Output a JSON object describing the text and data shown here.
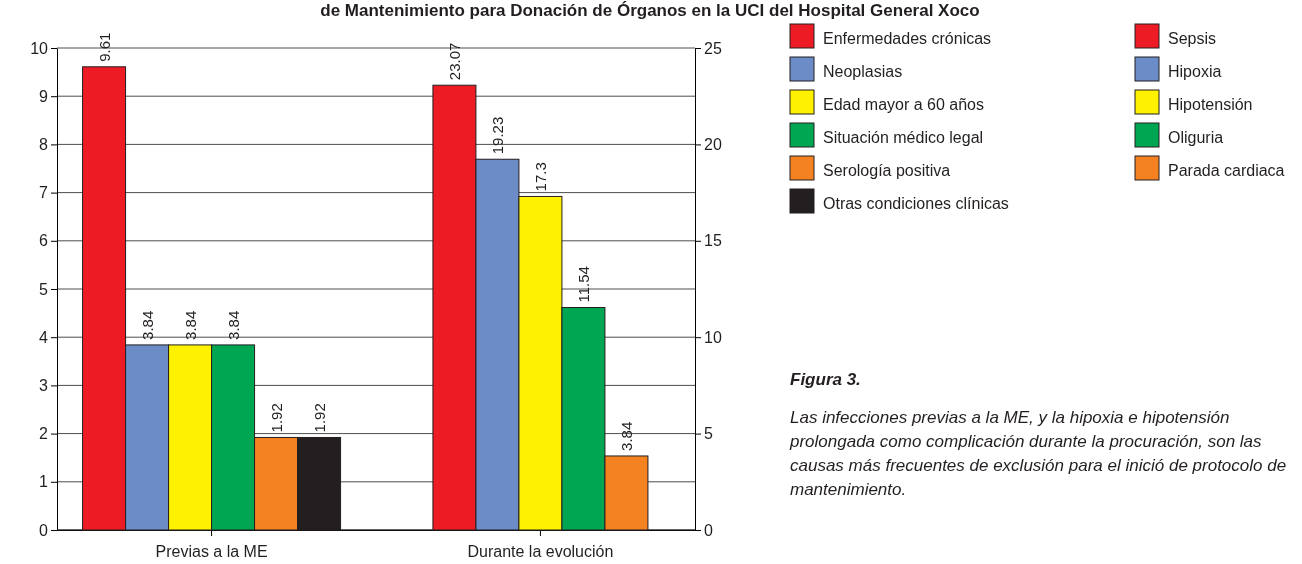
{
  "chart_data": {
    "type": "bar",
    "title": "de Mantenimiento para Donación de Órganos en la UCI del Hospital General Xoco",
    "categories": [
      "Previas a la ME",
      "Durante la evolución"
    ],
    "series": [
      {
        "name": "Enfermedades crónicas",
        "color": "#ed1c24",
        "values": [
          9.61,
          null
        ]
      },
      {
        "name": "Neoplasias",
        "color": "#6b8cc7",
        "values": [
          3.84,
          null
        ]
      },
      {
        "name": "Edad mayor a 60 años",
        "color": "#fff200",
        "values": [
          3.84,
          null
        ]
      },
      {
        "name": "Situación  médico legal",
        "color": "#00a651",
        "values": [
          3.84,
          null
        ]
      },
      {
        "name": "Serología positiva",
        "color": "#f58220",
        "values": [
          1.92,
          null
        ]
      },
      {
        "name": "Otras condiciones clínicas",
        "color": "#231f20",
        "values": [
          1.92,
          null
        ]
      },
      {
        "name": "Sepsis",
        "color": "#ed1c24",
        "axis": "y2",
        "values": [
          null,
          23.07
        ]
      },
      {
        "name": "Hipoxia",
        "color": "#6b8cc7",
        "axis": "y2",
        "values": [
          null,
          19.23
        ]
      },
      {
        "name": "Hipotensión",
        "color": "#fff200",
        "axis": "y2",
        "values": [
          null,
          17.3
        ]
      },
      {
        "name": "Oliguria",
        "color": "#00a651",
        "axis": "y2",
        "values": [
          null,
          11.54
        ]
      },
      {
        "name": "Parada cardiaca",
        "color": "#f58220",
        "axis": "y2",
        "values": [
          null,
          3.84
        ]
      }
    ],
    "ylim": [
      0,
      10
    ],
    "yticks": [
      0,
      1,
      2,
      3,
      4,
      5,
      6,
      7,
      8,
      9,
      10
    ],
    "y2lim": [
      0,
      25
    ],
    "y2ticks": [
      0,
      5,
      10,
      15,
      20,
      25
    ],
    "grid": "y",
    "legend": "right",
    "data_labels": true,
    "annotations": [
      "Figura 3.",
      "Las infecciones previas a la ME, y la hipoxia e hipotensión prolongada como complicación durante la procuración, son las causas más frecuentes de exclusión para el inició de protocolo de mantenimiento."
    ]
  }
}
